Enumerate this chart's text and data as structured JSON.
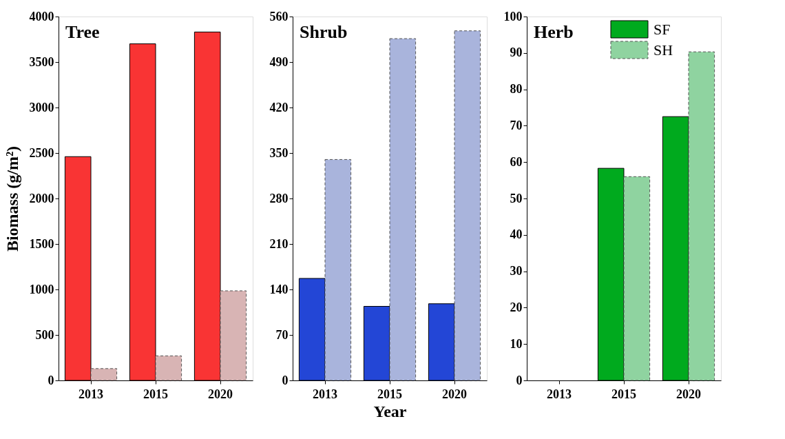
{
  "chart_data": [
    {
      "type": "bar",
      "title": "Tree",
      "ylabel": "Biomass (g/m²)",
      "categories": [
        "2013",
        "2015",
        "2020"
      ],
      "series": [
        {
          "color": "#f93434",
          "line_style": "solid",
          "values": [
            2460,
            3700,
            3830
          ]
        },
        {
          "color": "#d8b4b4",
          "line_style": "dashed",
          "values": [
            130,
            270,
            985
          ]
        }
      ],
      "ylim": [
        0,
        4000
      ],
      "yticks": [
        0,
        500,
        1000,
        1500,
        2000,
        2500,
        3000,
        3500,
        4000
      ],
      "grid": false
    },
    {
      "type": "bar",
      "title": "Shrub",
      "xlabel": "Year",
      "categories": [
        "2013",
        "2015",
        "2020"
      ],
      "series": [
        {
          "color": "#2346d6",
          "line_style": "solid",
          "values": [
            157,
            114,
            118
          ]
        },
        {
          "color": "#a9b4dc",
          "line_style": "dashed",
          "values": [
            340,
            526,
            538
          ]
        }
      ],
      "ylim": [
        0,
        560
      ],
      "yticks": [
        0,
        70,
        140,
        210,
        280,
        350,
        420,
        490,
        560
      ],
      "grid": false
    },
    {
      "type": "bar",
      "title": "Herb",
      "categories": [
        "2013",
        "2015",
        "2020"
      ],
      "series": [
        {
          "name": "SF",
          "color": "#00aa1e",
          "line_style": "solid",
          "values": [
            null,
            58.3,
            72.5
          ]
        },
        {
          "name": "SH",
          "color": "#8fd3a0",
          "line_style": "dashed",
          "values": [
            null,
            56,
            90.3
          ]
        }
      ],
      "ylim": [
        0,
        100
      ],
      "yticks": [
        0,
        10,
        20,
        30,
        40,
        50,
        60,
        70,
        80,
        90,
        100
      ],
      "grid": false,
      "legend": "top right"
    }
  ]
}
